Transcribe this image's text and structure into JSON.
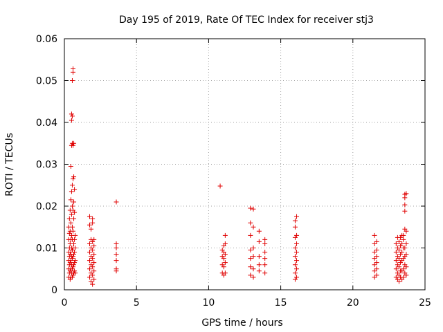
{
  "chart_data": {
    "type": "scatter",
    "title": "Day 195 of 2019, Rate Of TEC Index for receiver stj3",
    "xlabel": "GPS time / hours",
    "ylabel": "ROTI / TECUs",
    "xlim": [
      0,
      25
    ],
    "ylim": [
      0,
      0.06
    ],
    "x_ticks": [
      0,
      5,
      10,
      15,
      20,
      25
    ],
    "y_ticks": [
      0,
      0.01,
      0.02,
      0.03,
      0.04,
      0.05,
      0.06
    ],
    "x_tick_labels": [
      "0",
      "5",
      "10",
      "15",
      "20",
      "25"
    ],
    "y_tick_labels": [
      "0",
      "0.01",
      "0.02",
      "0.03",
      "0.04",
      "0.05",
      "0.06"
    ],
    "grid": true,
    "marker": "+",
    "color": "#e00000",
    "series": [
      {
        "name": "ROTI",
        "points": [
          [
            0.3,
            0.003
          ],
          [
            0.3,
            0.005
          ],
          [
            0.3,
            0.007
          ],
          [
            0.3,
            0.009
          ],
          [
            0.3,
            0.012
          ],
          [
            0.3,
            0.015
          ],
          [
            0.35,
            0.004
          ],
          [
            0.35,
            0.006
          ],
          [
            0.35,
            0.008
          ],
          [
            0.35,
            0.01
          ],
          [
            0.35,
            0.0135
          ],
          [
            0.35,
            0.017
          ],
          [
            0.4,
            0.0025
          ],
          [
            0.4,
            0.0045
          ],
          [
            0.4,
            0.0065
          ],
          [
            0.4,
            0.0085
          ],
          [
            0.4,
            0.011
          ],
          [
            0.4,
            0.014
          ],
          [
            0.4,
            0.019
          ],
          [
            0.45,
            0.003
          ],
          [
            0.45,
            0.005
          ],
          [
            0.45,
            0.007
          ],
          [
            0.45,
            0.009
          ],
          [
            0.45,
            0.012
          ],
          [
            0.45,
            0.016
          ],
          [
            0.45,
            0.0215
          ],
          [
            0.45,
            0.0295
          ],
          [
            0.5,
            0.004
          ],
          [
            0.5,
            0.006
          ],
          [
            0.5,
            0.008
          ],
          [
            0.5,
            0.01
          ],
          [
            0.5,
            0.013
          ],
          [
            0.5,
            0.018
          ],
          [
            0.5,
            0.0235
          ],
          [
            0.5,
            0.0345
          ],
          [
            0.5,
            0.0405
          ],
          [
            0.5,
            0.042
          ],
          [
            0.55,
            0.003
          ],
          [
            0.55,
            0.005
          ],
          [
            0.55,
            0.0075
          ],
          [
            0.55,
            0.0095
          ],
          [
            0.55,
            0.012
          ],
          [
            0.55,
            0.015
          ],
          [
            0.55,
            0.02
          ],
          [
            0.55,
            0.025
          ],
          [
            0.55,
            0.035
          ],
          [
            0.55,
            0.0415
          ],
          [
            0.55,
            0.05
          ],
          [
            0.6,
            0.0035
          ],
          [
            0.6,
            0.0055
          ],
          [
            0.6,
            0.008
          ],
          [
            0.6,
            0.01
          ],
          [
            0.6,
            0.014
          ],
          [
            0.6,
            0.019
          ],
          [
            0.6,
            0.0265
          ],
          [
            0.6,
            0.0345
          ],
          [
            0.6,
            0.052
          ],
          [
            0.6,
            0.0528
          ],
          [
            0.65,
            0.004
          ],
          [
            0.65,
            0.006
          ],
          [
            0.65,
            0.0085
          ],
          [
            0.65,
            0.011
          ],
          [
            0.65,
            0.017
          ],
          [
            0.65,
            0.021
          ],
          [
            0.65,
            0.027
          ],
          [
            0.65,
            0.035
          ],
          [
            0.7,
            0.0045
          ],
          [
            0.7,
            0.0065
          ],
          [
            0.7,
            0.009
          ],
          [
            0.7,
            0.012
          ],
          [
            0.7,
            0.0185
          ],
          [
            0.7,
            0.024
          ],
          [
            0.75,
            0.004
          ],
          [
            0.75,
            0.007
          ],
          [
            0.75,
            0.01
          ],
          [
            0.75,
            0.013
          ],
          [
            1.75,
            0.003
          ],
          [
            1.75,
            0.005
          ],
          [
            1.75,
            0.007
          ],
          [
            1.75,
            0.009
          ],
          [
            1.75,
            0.011
          ],
          [
            1.75,
            0.0155
          ],
          [
            1.75,
            0.0175
          ],
          [
            1.85,
            0.002
          ],
          [
            1.85,
            0.004
          ],
          [
            1.85,
            0.006
          ],
          [
            1.85,
            0.008
          ],
          [
            1.85,
            0.01
          ],
          [
            1.85,
            0.012
          ],
          [
            1.85,
            0.0145
          ],
          [
            1.95,
            0.0013
          ],
          [
            1.95,
            0.0035
          ],
          [
            1.95,
            0.0055
          ],
          [
            1.95,
            0.0075
          ],
          [
            1.95,
            0.0095
          ],
          [
            1.95,
            0.0115
          ],
          [
            1.95,
            0.016
          ],
          [
            1.95,
            0.017
          ],
          [
            2.05,
            0.0025
          ],
          [
            2.05,
            0.0045
          ],
          [
            2.05,
            0.0065
          ],
          [
            2.05,
            0.0085
          ],
          [
            2.05,
            0.0105
          ],
          [
            2.05,
            0.012
          ],
          [
            3.6,
            0.0045
          ],
          [
            3.6,
            0.005
          ],
          [
            3.6,
            0.007
          ],
          [
            3.6,
            0.0085
          ],
          [
            3.6,
            0.01
          ],
          [
            3.6,
            0.011
          ],
          [
            3.6,
            0.021
          ],
          [
            10.8,
            0.0248
          ],
          [
            10.95,
            0.004
          ],
          [
            10.95,
            0.006
          ],
          [
            10.95,
            0.008
          ],
          [
            10.95,
            0.0095
          ],
          [
            11.05,
            0.0035
          ],
          [
            11.05,
            0.0055
          ],
          [
            11.05,
            0.0075
          ],
          [
            11.05,
            0.009
          ],
          [
            11.05,
            0.0105
          ],
          [
            11.15,
            0.004
          ],
          [
            11.15,
            0.0065
          ],
          [
            11.15,
            0.0085
          ],
          [
            11.15,
            0.011
          ],
          [
            11.15,
            0.013
          ],
          [
            12.9,
            0.0035
          ],
          [
            12.9,
            0.0055
          ],
          [
            12.9,
            0.0075
          ],
          [
            12.9,
            0.0095
          ],
          [
            12.9,
            0.013
          ],
          [
            12.9,
            0.016
          ],
          [
            12.9,
            0.0195
          ],
          [
            13.1,
            0.003
          ],
          [
            13.1,
            0.005
          ],
          [
            13.1,
            0.008
          ],
          [
            13.1,
            0.01
          ],
          [
            13.1,
            0.015
          ],
          [
            13.1,
            0.0193
          ],
          [
            13.5,
            0.0045
          ],
          [
            13.5,
            0.006
          ],
          [
            13.5,
            0.008
          ],
          [
            13.5,
            0.0115
          ],
          [
            13.5,
            0.014
          ],
          [
            13.9,
            0.004
          ],
          [
            13.9,
            0.006
          ],
          [
            13.9,
            0.0075
          ],
          [
            13.9,
            0.009
          ],
          [
            13.9,
            0.011
          ],
          [
            13.9,
            0.012
          ],
          [
            16.0,
            0.0025
          ],
          [
            16.0,
            0.004
          ],
          [
            16.0,
            0.006
          ],
          [
            16.0,
            0.008
          ],
          [
            16.0,
            0.01
          ],
          [
            16.0,
            0.0125
          ],
          [
            16.0,
            0.015
          ],
          [
            16.0,
            0.0165
          ],
          [
            16.1,
            0.003
          ],
          [
            16.1,
            0.005
          ],
          [
            16.1,
            0.007
          ],
          [
            16.1,
            0.009
          ],
          [
            16.1,
            0.011
          ],
          [
            16.1,
            0.013
          ],
          [
            16.1,
            0.0175
          ],
          [
            21.5,
            0.003
          ],
          [
            21.5,
            0.0045
          ],
          [
            21.5,
            0.006
          ],
          [
            21.5,
            0.0075
          ],
          [
            21.5,
            0.009
          ],
          [
            21.5,
            0.011
          ],
          [
            21.5,
            0.013
          ],
          [
            21.65,
            0.0035
          ],
          [
            21.65,
            0.005
          ],
          [
            21.65,
            0.0065
          ],
          [
            21.65,
            0.008
          ],
          [
            21.65,
            0.0095
          ],
          [
            21.65,
            0.0115
          ],
          [
            23.0,
            0.003
          ],
          [
            23.0,
            0.005
          ],
          [
            23.0,
            0.007
          ],
          [
            23.0,
            0.009
          ],
          [
            23.0,
            0.011
          ],
          [
            23.1,
            0.0025
          ],
          [
            23.1,
            0.004
          ],
          [
            23.1,
            0.006
          ],
          [
            23.1,
            0.008
          ],
          [
            23.1,
            0.01
          ],
          [
            23.1,
            0.0125
          ],
          [
            23.2,
            0.002
          ],
          [
            23.2,
            0.0035
          ],
          [
            23.2,
            0.0055
          ],
          [
            23.2,
            0.0075
          ],
          [
            23.2,
            0.0095
          ],
          [
            23.2,
            0.0115
          ],
          [
            23.3,
            0.003
          ],
          [
            23.3,
            0.0045
          ],
          [
            23.3,
            0.0065
          ],
          [
            23.3,
            0.0085
          ],
          [
            23.3,
            0.0105
          ],
          [
            23.3,
            0.0125
          ],
          [
            23.4,
            0.0025
          ],
          [
            23.4,
            0.0045
          ],
          [
            23.4,
            0.007
          ],
          [
            23.4,
            0.009
          ],
          [
            23.4,
            0.011
          ],
          [
            23.4,
            0.013
          ],
          [
            23.5,
            0.003
          ],
          [
            23.5,
            0.005
          ],
          [
            23.5,
            0.0075
          ],
          [
            23.5,
            0.01
          ],
          [
            23.5,
            0.012
          ],
          [
            23.5,
            0.013
          ],
          [
            23.6,
            0.004
          ],
          [
            23.6,
            0.006
          ],
          [
            23.6,
            0.008
          ],
          [
            23.6,
            0.01
          ],
          [
            23.6,
            0.0145
          ],
          [
            23.6,
            0.0188
          ],
          [
            23.6,
            0.0203
          ],
          [
            23.6,
            0.022
          ],
          [
            23.6,
            0.0228
          ],
          [
            23.7,
            0.0035
          ],
          [
            23.7,
            0.0055
          ],
          [
            23.7,
            0.0085
          ],
          [
            23.7,
            0.011
          ],
          [
            23.7,
            0.014
          ],
          [
            23.7,
            0.023
          ]
        ]
      }
    ]
  }
}
